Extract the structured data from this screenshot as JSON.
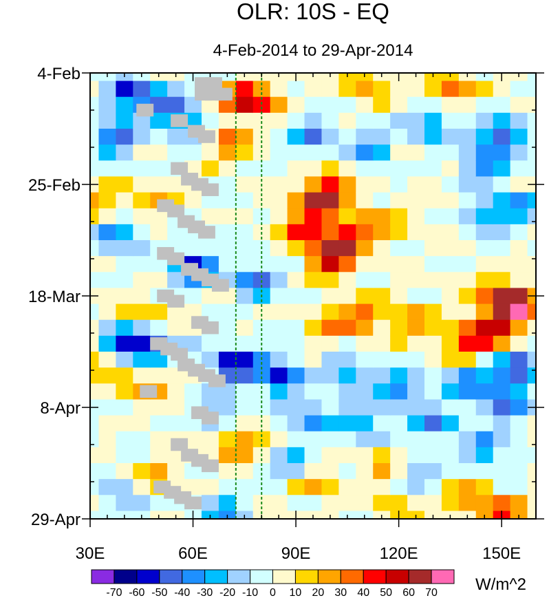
{
  "chart_data": {
    "type": "heatmap",
    "title": "OLR: 10S - EQ",
    "subtitle": "4-Feb-2014 to 29-Apr-2014",
    "xlabel": "",
    "ylabel": "",
    "units_label": "W/m^2",
    "xlim": [
      30,
      160
    ],
    "ylim_days": [
      0,
      84
    ],
    "x_ticks": [
      {
        "value": 30,
        "label": "30E"
      },
      {
        "value": 60,
        "label": "60E"
      },
      {
        "value": 90,
        "label": "90E"
      },
      {
        "value": 120,
        "label": "120E"
      },
      {
        "value": 150,
        "label": "150E"
      }
    ],
    "y_ticks": [
      {
        "day": 0,
        "label": "4-Feb"
      },
      {
        "day": 21,
        "label": "25-Feb"
      },
      {
        "day": 42,
        "label": "18-Mar"
      },
      {
        "day": 63,
        "label": "8-Apr"
      },
      {
        "day": 84,
        "label": "29-Apr"
      }
    ],
    "reference_lines_lon": [
      72.5,
      80
    ],
    "reference_line_color": "#1a8a1a",
    "colorbar": {
      "levels": [
        "-70",
        "-60",
        "-50",
        "-40",
        "-30",
        "-20",
        "-10",
        "0",
        "10",
        "20",
        "30",
        "40",
        "50",
        "60",
        "70"
      ],
      "colors": [
        "#8a2be2",
        "#00008b",
        "#0000cd",
        "#4169e1",
        "#1e90ff",
        "#00bfff",
        "#a0d2ff",
        "#d2ffff",
        "#fffacd",
        "#ffd700",
        "#ffa500",
        "#ff6a00",
        "#ff0000",
        "#c80000",
        "#a52a2a",
        "#ff69b4"
      ]
    },
    "grid_lon": [
      30,
      35,
      40,
      45,
      50,
      55,
      60,
      65,
      70,
      75,
      80,
      85,
      90,
      95,
      100,
      105,
      110,
      115,
      120,
      125,
      130,
      135,
      140,
      145,
      150,
      155,
      160
    ],
    "grid_day_step": 6,
    "anomaly_features": [
      {
        "lon": 42,
        "day": 4,
        "value": -55
      },
      {
        "lon": 52,
        "day": 6,
        "value": -40
      },
      {
        "lon": 38,
        "day": 12,
        "value": -45
      },
      {
        "lon": 60,
        "day": 10,
        "value": -30
      },
      {
        "lon": 48,
        "day": 24,
        "value": 25
      },
      {
        "lon": 38,
        "day": 30,
        "value": -40
      },
      {
        "lon": 60,
        "day": 37,
        "value": -55
      },
      {
        "lon": 78,
        "day": 39,
        "value": -45
      },
      {
        "lon": 73,
        "day": 5,
        "value": 35
      },
      {
        "lon": 79,
        "day": 5,
        "value": 40
      },
      {
        "lon": 70,
        "day": 13,
        "value": 35
      },
      {
        "lon": 45,
        "day": 45,
        "value": 20
      },
      {
        "lon": 40,
        "day": 51,
        "value": -50
      },
      {
        "lon": 48,
        "day": 52,
        "value": -45
      },
      {
        "lon": 72,
        "day": 55,
        "value": -65
      },
      {
        "lon": 85,
        "day": 57,
        "value": -55
      },
      {
        "lon": 45,
        "day": 59,
        "value": 30
      },
      {
        "lon": 68,
        "day": 65,
        "value": -25
      },
      {
        "lon": 72,
        "day": 70,
        "value": 40
      },
      {
        "lon": 50,
        "day": 76,
        "value": 25
      },
      {
        "lon": 40,
        "day": 80,
        "value": -20
      },
      {
        "lon": 70,
        "day": 83,
        "value": -30
      },
      {
        "lon": 88,
        "day": 74,
        "value": -25
      },
      {
        "lon": 100,
        "day": 22,
        "value": 50
      },
      {
        "lon": 95,
        "day": 25,
        "value": 45
      },
      {
        "lon": 105,
        "day": 31,
        "value": 55
      },
      {
        "lon": 100,
        "day": 35,
        "value": 55
      },
      {
        "lon": 92,
        "day": 30,
        "value": 40
      },
      {
        "lon": 110,
        "day": 2,
        "value": 30
      },
      {
        "lon": 135,
        "day": 3,
        "value": 35
      },
      {
        "lon": 115,
        "day": 28,
        "value": 25
      },
      {
        "lon": 95,
        "day": 12,
        "value": -35
      },
      {
        "lon": 112,
        "day": 14,
        "value": -30
      },
      {
        "lon": 130,
        "day": 10,
        "value": -35
      },
      {
        "lon": 150,
        "day": 12,
        "value": -50
      },
      {
        "lon": 145,
        "day": 17,
        "value": -40
      },
      {
        "lon": 155,
        "day": 25,
        "value": -35
      },
      {
        "lon": 145,
        "day": 27,
        "value": -30
      },
      {
        "lon": 125,
        "day": 47,
        "value": 30
      },
      {
        "lon": 110,
        "day": 46,
        "value": 35
      },
      {
        "lon": 150,
        "day": 42,
        "value": 45
      },
      {
        "lon": 155,
        "day": 44,
        "value": 60
      },
      {
        "lon": 148,
        "day": 48,
        "value": 50
      },
      {
        "lon": 140,
        "day": 51,
        "value": 45
      },
      {
        "lon": 100,
        "day": 47,
        "value": 25
      },
      {
        "lon": 105,
        "day": 57,
        "value": -35
      },
      {
        "lon": 120,
        "day": 60,
        "value": -35
      },
      {
        "lon": 140,
        "day": 58,
        "value": -40
      },
      {
        "lon": 155,
        "day": 56,
        "value": -55
      },
      {
        "lon": 150,
        "day": 62,
        "value": -45
      },
      {
        "lon": 130,
        "day": 66,
        "value": -35
      },
      {
        "lon": 110,
        "day": 66,
        "value": -30
      },
      {
        "lon": 95,
        "day": 65,
        "value": -30
      },
      {
        "lon": 115,
        "day": 74,
        "value": 25
      },
      {
        "lon": 95,
        "day": 78,
        "value": 20
      },
      {
        "lon": 125,
        "day": 75,
        "value": -25
      },
      {
        "lon": 145,
        "day": 71,
        "value": -35
      },
      {
        "lon": 150,
        "day": 83,
        "value": 45
      },
      {
        "lon": 140,
        "day": 80,
        "value": 25
      },
      {
        "lon": 120,
        "day": 82,
        "value": 20
      },
      {
        "lon": 32,
        "day": 54,
        "value": 25
      },
      {
        "lon": 32,
        "day": 25,
        "value": 30
      }
    ],
    "missing_cells": [
      [
        63,
        2
      ],
      [
        66,
        2
      ],
      [
        63,
        4
      ],
      [
        66,
        4
      ],
      [
        69,
        4
      ],
      [
        46,
        7
      ],
      [
        56,
        9
      ],
      [
        61,
        11
      ],
      [
        64,
        12
      ],
      [
        56,
        18
      ],
      [
        59,
        20
      ],
      [
        62,
        21
      ],
      [
        65,
        22
      ],
      [
        52,
        25
      ],
      [
        55,
        26
      ],
      [
        58,
        28
      ],
      [
        61,
        29
      ],
      [
        64,
        30
      ],
      [
        52,
        34
      ],
      [
        55,
        35
      ],
      [
        59,
        37
      ],
      [
        62,
        38
      ],
      [
        65,
        39
      ],
      [
        68,
        40
      ],
      [
        52,
        42
      ],
      [
        55,
        43
      ],
      [
        62,
        47
      ],
      [
        65,
        48
      ],
      [
        50,
        51
      ],
      [
        53,
        52
      ],
      [
        56,
        53
      ],
      [
        58,
        55
      ],
      [
        61,
        56
      ],
      [
        64,
        57
      ],
      [
        67,
        58
      ],
      [
        47,
        60
      ],
      [
        62,
        64
      ],
      [
        65,
        65
      ],
      [
        56,
        70
      ],
      [
        59,
        72
      ],
      [
        62,
        73
      ],
      [
        65,
        74
      ],
      [
        51,
        78
      ],
      [
        54,
        79
      ],
      [
        57,
        80
      ],
      [
        60,
        81
      ]
    ]
  }
}
